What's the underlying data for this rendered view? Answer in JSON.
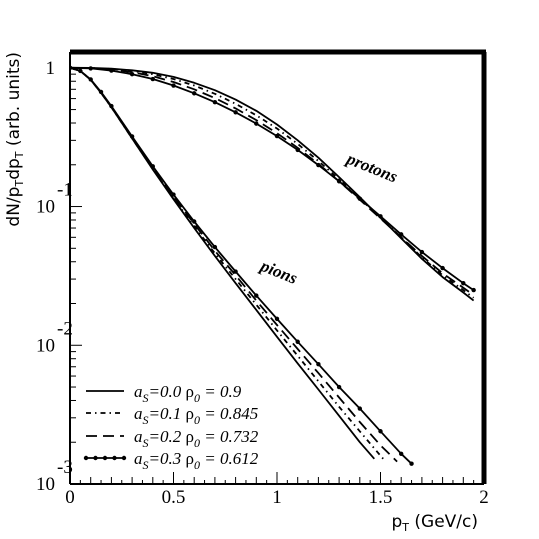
{
  "chart_data": {
    "type": "line",
    "xlabel": "p_T (GeV/c)",
    "ylabel": "dN/p_T dp_T (arb. units)",
    "xlim": [
      0,
      2
    ],
    "ylim": [
      0.001,
      1.3
    ],
    "yscale": "log",
    "grid": false,
    "legend_position": "bottom-left",
    "x_ticks": [
      "0",
      "0.5",
      "1",
      "1.5",
      "2"
    ],
    "y_ticks": [
      {
        "value": 1,
        "base": "1",
        "exp": ""
      },
      {
        "value": 0.1,
        "base": "10",
        "exp": "-1"
      },
      {
        "value": 0.01,
        "base": "10",
        "exp": "-2"
      },
      {
        "value": 0.001,
        "base": "10",
        "exp": "-3"
      }
    ],
    "annotations": [
      {
        "text": "protons",
        "x": 1.45,
        "y": 0.175
      },
      {
        "text": "pions",
        "x": 1.0,
        "y": 0.031
      }
    ],
    "series": [
      {
        "name": "a_S=0.0 ρ_0 = 0.9",
        "legend": {
          "a": "a",
          "asub": "S",
          "aval": "=0.0 ",
          "rho": "ρ",
          "rsub": "0",
          "rval": " = 0.9"
        },
        "dash": "solid",
        "marker": false,
        "curves": [
          {
            "particle": "protons",
            "x": [
              0,
              0.1,
              0.2,
              0.3,
              0.4,
              0.5,
              0.6,
              0.7,
              0.8,
              0.9,
              1.0,
              1.1,
              1.2,
              1.3,
              1.4,
              1.5,
              1.6,
              1.7,
              1.8,
              1.9,
              1.95
            ],
            "y": [
              1.0,
              0.998,
              0.985,
              0.96,
              0.92,
              0.86,
              0.78,
              0.69,
              0.59,
              0.49,
              0.39,
              0.3,
              0.225,
              0.163,
              0.117,
              0.083,
              0.059,
              0.042,
              0.031,
              0.024,
              0.021
            ]
          },
          {
            "particle": "pions",
            "x": [
              0,
              0.05,
              0.1,
              0.15,
              0.2,
              0.3,
              0.4,
              0.5,
              0.6,
              0.7,
              0.8,
              0.9,
              1.0,
              1.1,
              1.2,
              1.3,
              1.4,
              1.47
            ],
            "y": [
              1.0,
              0.95,
              0.82,
              0.66,
              0.52,
              0.31,
              0.185,
              0.113,
              0.07,
              0.044,
              0.028,
              0.018,
              0.0115,
              0.0074,
              0.0048,
              0.0031,
              0.002,
              0.00152
            ]
          }
        ]
      },
      {
        "name": "a_S=0.1 ρ_0 = 0.845",
        "legend": {
          "a": "a",
          "asub": "S",
          "aval": "=0.1 ",
          "rho": "ρ",
          "rsub": "0",
          "rval": " = 0.845"
        },
        "dash": "dashdot",
        "marker": false,
        "curves": [
          {
            "particle": "protons",
            "x": [
              0,
              0.1,
              0.2,
              0.3,
              0.4,
              0.5,
              0.6,
              0.7,
              0.8,
              0.9,
              1.0,
              1.1,
              1.2,
              1.3,
              1.4,
              1.5,
              1.6,
              1.7,
              1.8,
              1.9,
              1.95
            ],
            "y": [
              1.0,
              0.997,
              0.98,
              0.95,
              0.9,
              0.83,
              0.745,
              0.65,
              0.55,
              0.455,
              0.365,
              0.283,
              0.213,
              0.157,
              0.114,
              0.083,
              0.06,
              0.043,
              0.032,
              0.025,
              0.022
            ]
          },
          {
            "particle": "pions",
            "x": [
              0,
              0.05,
              0.1,
              0.15,
              0.2,
              0.3,
              0.4,
              0.5,
              0.6,
              0.7,
              0.8,
              0.9,
              1.0,
              1.1,
              1.2,
              1.3,
              1.4,
              1.5,
              1.52
            ],
            "y": [
              1.0,
              0.95,
              0.82,
              0.66,
              0.52,
              0.31,
              0.186,
              0.115,
              0.072,
              0.046,
              0.03,
              0.0196,
              0.0128,
              0.0084,
              0.0055,
              0.0036,
              0.0024,
              0.0016,
              0.00148
            ]
          }
        ]
      },
      {
        "name": "a_S=0.2 ρ_0 = 0.732",
        "legend": {
          "a": "a",
          "asub": "S",
          "aval": "=0.2 ",
          "rho": "ρ",
          "rsub": "0",
          "rval": " = 0.732"
        },
        "dash": "dash",
        "marker": false,
        "curves": [
          {
            "particle": "protons",
            "x": [
              0,
              0.1,
              0.2,
              0.3,
              0.4,
              0.5,
              0.6,
              0.7,
              0.8,
              0.9,
              1.0,
              1.1,
              1.2,
              1.3,
              1.4,
              1.5,
              1.6,
              1.7,
              1.8,
              1.9,
              1.95
            ],
            "y": [
              1.0,
              0.995,
              0.97,
              0.93,
              0.87,
              0.79,
              0.7,
              0.605,
              0.51,
              0.42,
              0.338,
              0.265,
              0.203,
              0.152,
              0.112,
              0.082,
              0.06,
              0.044,
              0.033,
              0.026,
              0.023
            ]
          },
          {
            "particle": "pions",
            "x": [
              0,
              0.05,
              0.1,
              0.15,
              0.2,
              0.3,
              0.4,
              0.5,
              0.6,
              0.7,
              0.8,
              0.9,
              1.0,
              1.1,
              1.2,
              1.3,
              1.4,
              1.5,
              1.58
            ],
            "y": [
              1.0,
              0.95,
              0.82,
              0.665,
              0.525,
              0.315,
              0.19,
              0.118,
              0.075,
              0.048,
              0.032,
              0.021,
              0.014,
              0.0094,
              0.0063,
              0.0042,
              0.0028,
              0.0019,
              0.00145
            ]
          }
        ]
      },
      {
        "name": "a_S=0.3 ρ_0 = 0.612",
        "legend": {
          "a": "a",
          "asub": "S",
          "aval": "=0.3 ",
          "rho": "ρ",
          "rsub": "0",
          "rval": " = 0.612"
        },
        "dash": "solid",
        "marker": true,
        "curves": [
          {
            "particle": "protons",
            "x": [
              0,
              0.1,
              0.2,
              0.3,
              0.4,
              0.5,
              0.6,
              0.7,
              0.8,
              0.9,
              1.0,
              1.1,
              1.2,
              1.3,
              1.4,
              1.5,
              1.6,
              1.7,
              1.8,
              1.9,
              1.95
            ],
            "y": [
              1.0,
              0.99,
              0.955,
              0.9,
              0.83,
              0.745,
              0.655,
              0.565,
              0.478,
              0.396,
              0.322,
              0.256,
              0.199,
              0.152,
              0.114,
              0.085,
              0.063,
              0.047,
              0.036,
              0.028,
              0.025
            ]
          },
          {
            "particle": "pions",
            "x": [
              0,
              0.05,
              0.1,
              0.15,
              0.2,
              0.3,
              0.4,
              0.5,
              0.6,
              0.7,
              0.8,
              0.9,
              1.0,
              1.1,
              1.2,
              1.3,
              1.4,
              1.5,
              1.6,
              1.65
            ],
            "y": [
              1.0,
              0.95,
              0.825,
              0.67,
              0.53,
              0.32,
              0.195,
              0.122,
              0.078,
              0.051,
              0.034,
              0.0228,
              0.0155,
              0.0106,
              0.0073,
              0.005,
              0.0035,
              0.0024,
              0.00165,
              0.0014
            ]
          }
        ]
      }
    ]
  }
}
